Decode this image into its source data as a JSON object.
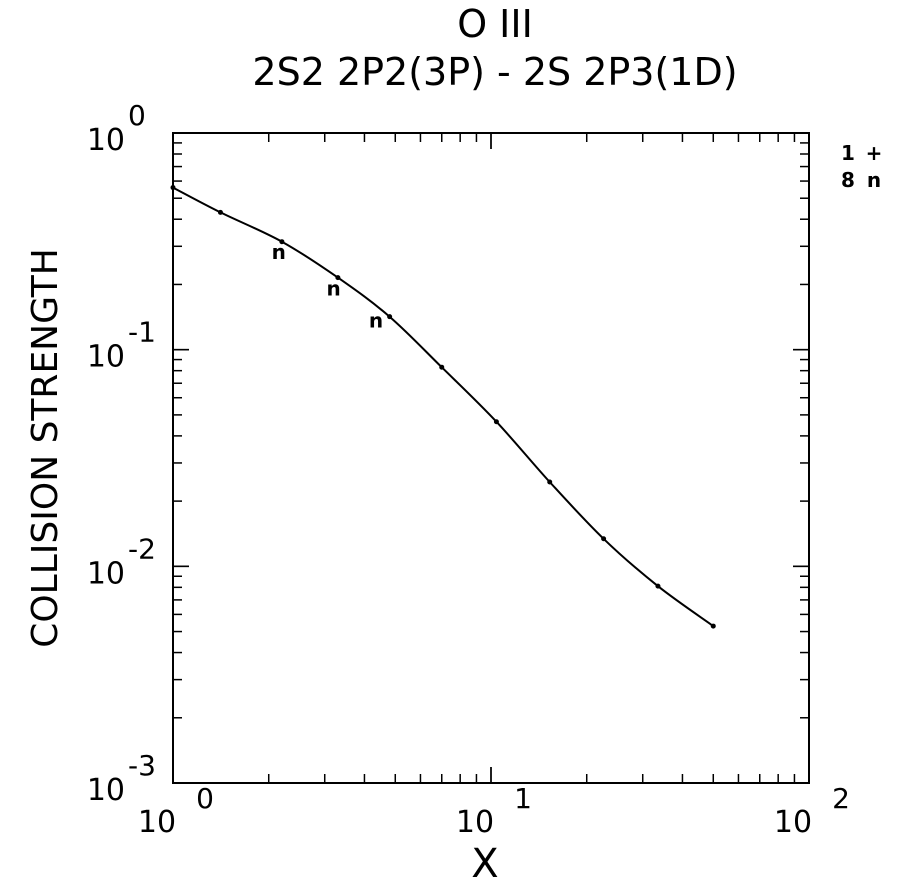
{
  "chart_data": {
    "type": "line",
    "title": "O III",
    "subtitle": "2S2 2P2(3P) - 2S 2P3(1D)",
    "xlabel": "X",
    "ylabel": "COLLISION STRENGTH",
    "xscale": "log",
    "yscale": "log",
    "xlim": [
      1,
      100
    ],
    "ylim": [
      0.001,
      1
    ],
    "x_ticks": [
      {
        "base": "10",
        "exp": "0",
        "value": 1
      },
      {
        "base": "10",
        "exp": "1",
        "value": 10
      },
      {
        "base": "10",
        "exp": "2",
        "value": 100
      }
    ],
    "y_ticks": [
      {
        "base": "10",
        "exp": "0",
        "value": 1
      },
      {
        "base": "10",
        "exp": "-1",
        "value": 0.1
      },
      {
        "base": "10",
        "exp": "-2",
        "value": 0.01
      },
      {
        "base": "10",
        "exp": "-3",
        "value": 0.001
      }
    ],
    "legend": {
      "placement": "top-right",
      "entries": [
        {
          "number": "1",
          "symbol": "+"
        },
        {
          "number": "8",
          "symbol": "n"
        }
      ]
    },
    "grid": false,
    "series": [
      {
        "marker": "dot",
        "x": [
          1.0,
          1.41,
          2.2,
          3.3,
          4.8,
          7.0,
          10.4,
          15.3,
          22.6,
          33.5,
          50.0
        ],
        "y": [
          0.56,
          0.43,
          0.315,
          0.215,
          0.142,
          0.083,
          0.0465,
          0.0245,
          0.0134,
          0.0081,
          0.0053
        ]
      },
      {
        "marker": "n",
        "x": [
          2.15,
          3.2,
          4.35
        ],
        "y": [
          0.28,
          0.19,
          0.135
        ]
      }
    ]
  }
}
